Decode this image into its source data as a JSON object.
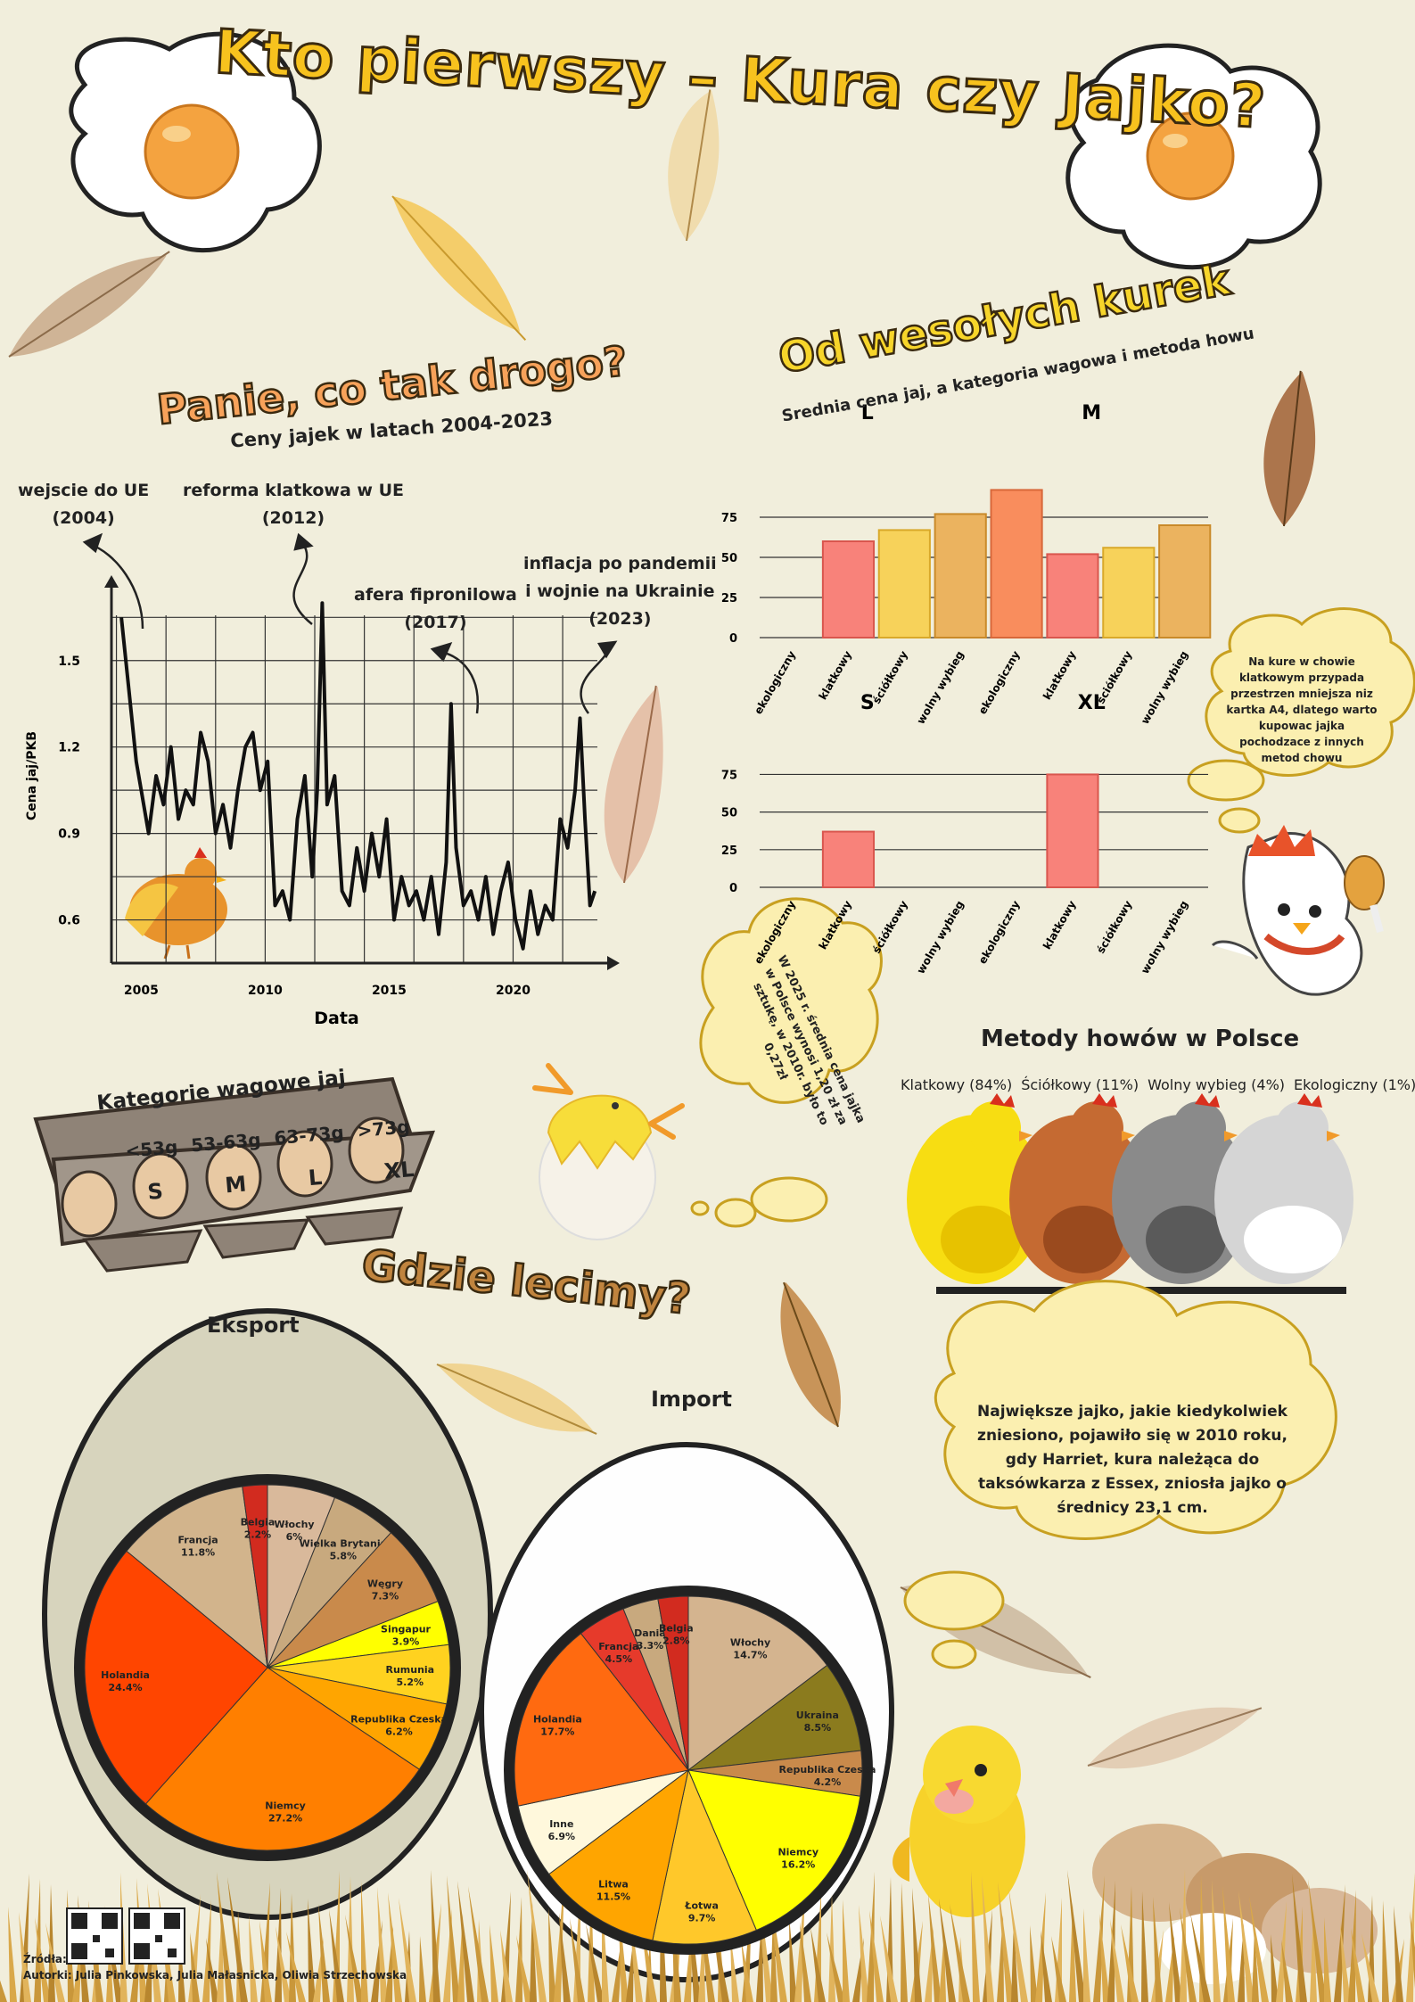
{
  "title": "Kto pierwszy – Kura czy Jajko?",
  "price_section": {
    "heading": "Panie, co tak drogo?",
    "subtitle": "Ceny jajek w latach 2004-2023",
    "annotations": [
      {
        "line1": "wejscie do UE",
        "line2": "(2004)"
      },
      {
        "line1": "reforma klatkowa w UE",
        "line2": "(2012)"
      },
      {
        "line1": "afera fipronilowa",
        "line2": "(2017)"
      },
      {
        "line1": "inflacja po pandemii",
        "line2": "i wojnie na Ukrainie",
        "line3": "(2023)"
      }
    ]
  },
  "weights_section": {
    "heading": "Od wesołych kurek",
    "subtitle": "Srednia cena jaj, a kategoria wagowa i metoda howu"
  },
  "bubble_cage": "Na kure w chowie klatkowym przypada przestrzen mniejsza niz kartka A4, dlatego warto kupowac jajka pochodzace z innych metod chowu",
  "bubble_price": "W 2025 r. średnia cena jajka w Polsce wynosi 1,20 zł za sztukę, w 2010r. było to 0,27zł",
  "categories_box": {
    "title": "Kategorie wagowe jaj",
    "ranges": [
      "<53g",
      "53-63g",
      "63-73g",
      ">73g"
    ],
    "sizes": [
      "S",
      "M",
      "L",
      "XL"
    ]
  },
  "methods_section": {
    "title": "Metody howów w Polsce",
    "labels": [
      "Klatkowy (84%)",
      "Ściółkowy (11%)",
      "Wolny wybieg (4%)",
      "Ekologiczny (1%)"
    ]
  },
  "where_heading": "Gdzie lecimy?",
  "bubble_big_egg": "Największe jajko, jakie kiedykolwiek zniesiono, pojawiło się w 2010 roku, gdy Harriet, kura należąca do taksówkarza z Essex, zniosła jajko o średnicy 23,1 cm.",
  "footer": {
    "sources": "Źródła:",
    "authors": "Autorki: Julia Pinkowska, Julia Małasnicka, Oliwia Strzechowska"
  },
  "colors": {
    "background": "#f1eedc",
    "title_fill": "#f7c21e",
    "accent_orange": "#f7a25a"
  },
  "chart_data": [
    {
      "type": "line",
      "xlabel": "Data",
      "ylabel": "Cena jaj/PKB",
      "x_ticks": [
        2005,
        2010,
        2015,
        2020
      ],
      "y_ticks": [
        0.6,
        0.9,
        1.2,
        1.5
      ],
      "xlim": [
        2003.8,
        2023.4
      ],
      "ylim": [
        0.45,
        1.75
      ],
      "series": [
        {
          "x": [
            2004.2,
            2004.5,
            2004.8,
            2005.0,
            2005.3,
            2005.6,
            2005.9,
            2006.2,
            2006.5,
            2006.8,
            2007.1,
            2007.4,
            2007.7,
            2008.0,
            2008.3,
            2008.6,
            2008.9,
            2009.2,
            2009.5,
            2009.8,
            2010.1,
            2010.4,
            2010.7,
            2011.0,
            2011.3,
            2011.6,
            2011.9,
            2012.1,
            2012.3,
            2012.5,
            2012.8,
            2013.1,
            2013.4,
            2013.7,
            2014.0,
            2014.3,
            2014.6,
            2014.9,
            2015.2,
            2015.5,
            2015.8,
            2016.1,
            2016.4,
            2016.7,
            2017.0,
            2017.3,
            2017.5,
            2017.7,
            2018.0,
            2018.3,
            2018.6,
            2018.9,
            2019.2,
            2019.5,
            2019.8,
            2020.1,
            2020.4,
            2020.7,
            2021.0,
            2021.3,
            2021.6,
            2021.9,
            2022.2,
            2022.5,
            2022.7,
            2022.9,
            2023.1,
            2023.3
          ],
          "y": [
            1.65,
            1.4,
            1.15,
            1.05,
            0.9,
            1.1,
            1.0,
            1.2,
            0.95,
            1.05,
            1.0,
            1.25,
            1.15,
            0.9,
            1.0,
            0.85,
            1.05,
            1.2,
            1.25,
            1.05,
            1.15,
            0.65,
            0.7,
            0.6,
            0.95,
            1.1,
            0.75,
            1.05,
            1.7,
            1.0,
            1.1,
            0.7,
            0.65,
            0.85,
            0.7,
            0.9,
            0.75,
            0.95,
            0.6,
            0.75,
            0.65,
            0.7,
            0.6,
            0.75,
            0.55,
            0.8,
            1.35,
            0.85,
            0.65,
            0.7,
            0.6,
            0.75,
            0.55,
            0.7,
            0.8,
            0.6,
            0.5,
            0.7,
            0.55,
            0.65,
            0.6,
            0.95,
            0.85,
            1.05,
            1.3,
            0.95,
            0.65,
            0.7
          ]
        }
      ]
    },
    {
      "type": "bar",
      "title": "L",
      "categories": [
        "ekologiczny",
        "klatkowy",
        "ściółkowy",
        "wolny wybieg"
      ],
      "values": [
        0,
        60,
        67,
        77
      ],
      "ylim": [
        0,
        100
      ],
      "y_ticks": [
        0,
        25,
        50,
        75
      ]
    },
    {
      "type": "bar",
      "title": "M",
      "categories": [
        "ekologiczny",
        "klatkowy",
        "ściółkowy",
        "wolny wybieg"
      ],
      "values": [
        92,
        52,
        56,
        70
      ],
      "ylim": [
        0,
        100
      ]
    },
    {
      "type": "bar",
      "title": "S",
      "categories": [
        "ekologiczny",
        "klatkowy",
        "ściółkowy",
        "wolny wybieg"
      ],
      "values": [
        0,
        37,
        0,
        0
      ],
      "ylim": [
        0,
        80
      ],
      "y_ticks": [
        0,
        25,
        50,
        75
      ]
    },
    {
      "type": "bar",
      "title": "XL",
      "categories": [
        "ekologiczny",
        "klatkowy",
        "ściółkowy",
        "wolny wybieg"
      ],
      "values": [
        0,
        75,
        0,
        0
      ],
      "ylim": [
        0,
        80
      ]
    },
    {
      "type": "pie",
      "title": "Eksport",
      "slices": [
        {
          "label": "Włochy",
          "value": 6.0,
          "pct": "6%",
          "color": "#d9b99b"
        },
        {
          "label": "Wielka Brytania",
          "value": 5.8,
          "pct": "5.8%",
          "color": "#c8a97e"
        },
        {
          "label": "Węgry",
          "value": 7.3,
          "pct": "7.3%",
          "color": "#c98a4b"
        },
        {
          "label": "Singapur",
          "value": 3.9,
          "pct": "3.9%",
          "color": "#ffff00"
        },
        {
          "label": "Rumunia",
          "value": 5.2,
          "pct": "5.2%",
          "color": "#ffd21f"
        },
        {
          "label": "Republika Czeska",
          "value": 6.2,
          "pct": "6.2%",
          "color": "#ffa500"
        },
        {
          "label": "Niemcy",
          "value": 27.2,
          "pct": "27.2%",
          "color": "#ff7f00"
        },
        {
          "label": "Holandia",
          "value": 24.4,
          "pct": "24.4%",
          "color": "#ff4500"
        },
        {
          "label": "Francja",
          "value": 11.8,
          "pct": "11.8%",
          "color": "#d2b48c"
        },
        {
          "label": "Belgia",
          "value": 2.2,
          "pct": "2.2%",
          "color": "#d22b1f"
        }
      ]
    },
    {
      "type": "pie",
      "title": "Import",
      "slices": [
        {
          "label": "Włochy",
          "value": 14.7,
          "pct": "14.7%",
          "color": "#d4b48f"
        },
        {
          "label": "Ukraina",
          "value": 8.5,
          "pct": "8.5%",
          "color": "#8b7b1e"
        },
        {
          "label": "Republika Czeska",
          "value": 4.2,
          "pct": "4.2%",
          "color": "#c98a4b"
        },
        {
          "label": "Niemcy",
          "value": 16.2,
          "pct": "16.2%",
          "color": "#ffff00"
        },
        {
          "label": "Łotwa",
          "value": 9.7,
          "pct": "9.7%",
          "color": "#ffc82a"
        },
        {
          "label": "Litwa",
          "value": 11.5,
          "pct": "11.5%",
          "color": "#ffa500"
        },
        {
          "label": "Inne",
          "value": 6.9,
          "pct": "6.9%",
          "color": "#fff8dc"
        },
        {
          "label": "Holandia",
          "value": 17.7,
          "pct": "17.7%",
          "color": "#ff6a10"
        },
        {
          "label": "Francja",
          "value": 4.5,
          "pct": "4.5%",
          "color": "#e63a2b"
        },
        {
          "label": "Dania",
          "value": 3.3,
          "pct": "3.3%",
          "color": "#c8a97e"
        },
        {
          "label": "Belgia",
          "value": 2.8,
          "pct": "2.8%",
          "color": "#d22b1f"
        }
      ]
    }
  ]
}
